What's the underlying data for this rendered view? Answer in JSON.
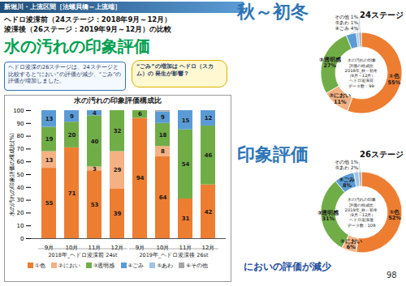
{
  "page": {
    "header": "新堀川・上流区間［法螺貝橋～上流端］",
    "subtitle_lines": [
      "ヘドロ浚渫前（24ステージ：2018年9月～12月）",
      "浚渫後（26ステージ：2019年9月～12月）の比較"
    ],
    "title": "水の汚れの印象評価",
    "note": "ヘドロ浚渫の26ステージは、24ステージと比較すると“におい”の評価が減少、“ごみ”の評価が増加しました。",
    "bubble": "“ごみ”の増加は ヘドロ（スカム）の 発生が影響？",
    "sections": [
      "秋～初冬",
      "印象評価"
    ],
    "conclusion": "においの評価が減少",
    "page_number": "98"
  },
  "chart_data": [
    {
      "type": "bar",
      "stacked": true,
      "data_labels": true,
      "grid": false,
      "legend": "bottom",
      "title": "水の汚れの印象評価構成比",
      "y_label": "水の汚れの印象評価の構成比(%)",
      "categories": [
        "9月",
        "10月",
        "11月",
        "12月",
        "9月",
        "10月",
        "11月",
        "12月"
      ],
      "category_groups": [
        "2018年_ヘドロ浚渫前 24st",
        "2018年_ヘドロ浚渫前 24st",
        "2018年_ヘドロ浚渫前 24st",
        "2018年_ヘドロ浚渫前 24st",
        "2019年_ヘドロ浚渫後 26st",
        "2019年_ヘドロ浚渫後 26st",
        "2019年_ヘドロ浚渫後 26st",
        "2019年_ヘドロ浚渫後 26st"
      ],
      "ylim": [
        0,
        100
      ],
      "yticks": [
        0,
        10,
        20,
        30,
        40,
        50,
        60,
        70,
        80,
        90,
        100
      ],
      "series": [
        {
          "name": "①色",
          "color": "#ed7d31",
          "values": [
            55,
            71,
            53,
            39,
            94,
            64,
            31,
            42
          ]
        },
        {
          "name": "②におい",
          "color": "#f4b183",
          "values": [
            13,
            0,
            3,
            29,
            0,
            8,
            0,
            0
          ]
        },
        {
          "name": "③透明感",
          "color": "#70ad47",
          "values": [
            19,
            20,
            40,
            32,
            6,
            18,
            54,
            46
          ]
        },
        {
          "name": "④ごみ",
          "color": "#5b9bd5",
          "values": [
            13,
            9,
            4,
            0,
            0,
            9,
            15,
            12
          ]
        },
        {
          "name": "⑤あわ",
          "color": "#9dc3e6",
          "values": [
            0,
            0,
            0,
            0,
            0,
            0,
            0,
            0
          ]
        },
        {
          "name": "⑥その他",
          "color": "#a5a5a5",
          "values": [
            0,
            0,
            0,
            0,
            0,
            1,
            0,
            0
          ]
        }
      ]
    },
    {
      "type": "pie",
      "title": "24ステージ",
      "center_text": [
        "水の汚れの印象",
        "評価の構成比",
        "2018年_秋～初冬",
        "（9月～12月）",
        "ヘドロ浚渫前",
        "データ数：99"
      ],
      "categories": [
        "①色",
        "②におい",
        "③透明感",
        "④ごみ",
        "⑤あわ",
        "その他"
      ],
      "values": [
        55,
        11,
        27,
        4,
        1,
        1
      ],
      "value_labels": [
        "55%",
        "11%",
        "27%",
        "4%",
        "1%",
        "1%"
      ],
      "colors": [
        "#ed7d31",
        "#f4b183",
        "#70ad47",
        "#5b9bd5",
        "#9dc3e6",
        "#a5a5a5"
      ],
      "data_labels": true
    },
    {
      "type": "pie",
      "title": "26ステージ",
      "center_text": [
        "水の汚れの印象",
        "評価の構成比",
        "2019年_秋～初冬",
        "（9月～12月）",
        "ヘドロ浚渫後",
        "データ数：108"
      ],
      "categories": [
        "①色",
        "②におい",
        "③透明感",
        "④ごみ",
        "⑤あわ",
        "その他"
      ],
      "values": [
        52,
        6,
        31,
        8,
        2,
        1
      ],
      "value_labels": [
        "52%",
        "6%",
        "31%",
        "8%",
        "2%",
        "1%"
      ],
      "colors": [
        "#ed7d31",
        "#f4b183",
        "#70ad47",
        "#5b9bd5",
        "#9dc3e6",
        "#a5a5a5"
      ],
      "data_labels": true
    }
  ]
}
